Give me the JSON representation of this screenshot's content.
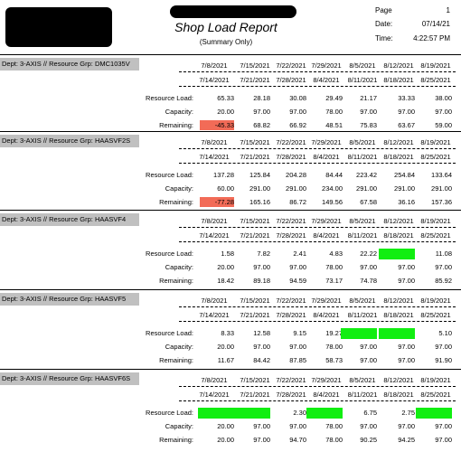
{
  "header": {
    "title": "Shop Load Report",
    "subtitle": "(Summary Only)",
    "page_label": "Page",
    "page_value": "1",
    "date_label": "Date:",
    "date_value": "07/14/21",
    "time_label": "Time:",
    "time_value": "4:22:57 PM"
  },
  "row_labels": {
    "load": "Resource Load:",
    "capacity": "Capacity:",
    "remaining": "Remaining:"
  },
  "sections": [
    {
      "dept": "Dept: 3-AXIS // Resource Grp: DMC1035V",
      "start_dates": [
        "7/8/2021",
        "7/15/2021",
        "7/22/2021",
        "7/29/2021",
        "8/5/2021",
        "8/12/2021",
        "8/19/2021"
      ],
      "end_dates": [
        "7/14/2021",
        "7/21/2021",
        "7/28/2021",
        "8/4/2021",
        "8/11/2021",
        "8/18/2021",
        "8/25/2021"
      ],
      "load": [
        "65.33",
        "28.18",
        "30.08",
        "29.49",
        "21.17",
        "33.33",
        "38.00"
      ],
      "capacity": [
        "20.00",
        "97.00",
        "97.00",
        "78.00",
        "97.00",
        "97.00",
        "97.00"
      ],
      "remaining": [
        "-45.33",
        "68.82",
        "66.92",
        "48.51",
        "75.83",
        "63.67",
        "59.00"
      ]
    },
    {
      "dept": "Dept: 3-AXIS // Resource Grp: HAASVF2S",
      "start_dates": [
        "7/8/2021",
        "7/15/2021",
        "7/22/2021",
        "7/29/2021",
        "8/5/2021",
        "8/12/2021",
        "8/19/2021"
      ],
      "end_dates": [
        "7/14/2021",
        "7/21/2021",
        "7/28/2021",
        "8/4/2021",
        "8/11/2021",
        "8/18/2021",
        "8/25/2021"
      ],
      "load": [
        "137.28",
        "125.84",
        "204.28",
        "84.44",
        "223.42",
        "254.84",
        "133.64"
      ],
      "capacity": [
        "60.00",
        "291.00",
        "291.00",
        "234.00",
        "291.00",
        "291.00",
        "291.00"
      ],
      "remaining": [
        "-77.28",
        "165.16",
        "86.72",
        "149.56",
        "67.58",
        "36.16",
        "157.36"
      ]
    },
    {
      "dept": "Dept: 3-AXIS // Resource Grp: HAASVF4",
      "start_dates": [
        "7/8/2021",
        "7/15/2021",
        "7/22/2021",
        "7/29/2021",
        "8/5/2021",
        "8/12/2021",
        "8/19/2021"
      ],
      "end_dates": [
        "7/14/2021",
        "7/21/2021",
        "7/28/2021",
        "8/4/2021",
        "8/11/2021",
        "8/18/2021",
        "8/25/2021"
      ],
      "load": [
        "1.58",
        "7.82",
        "2.41",
        "4.83",
        "22.22",
        "",
        "11.08"
      ],
      "capacity": [
        "20.00",
        "97.00",
        "97.00",
        "78.00",
        "97.00",
        "97.00",
        "97.00"
      ],
      "remaining": [
        "18.42",
        "89.18",
        "94.59",
        "73.17",
        "74.78",
        "97.00",
        "85.92"
      ]
    },
    {
      "dept": "Dept: 3-AXIS // Resource Grp: HAASVF5",
      "start_dates": [
        "7/8/2021",
        "7/15/2021",
        "7/22/2021",
        "7/29/2021",
        "8/5/2021",
        "8/12/2021",
        "8/19/2021"
      ],
      "end_dates": [
        "7/14/2021",
        "7/21/2021",
        "7/28/2021",
        "8/4/2021",
        "8/11/2021",
        "8/18/2021",
        "8/25/2021"
      ],
      "load": [
        "8.33",
        "12.58",
        "9.15",
        "19.27",
        "",
        "",
        "5.10"
      ],
      "capacity": [
        "20.00",
        "97.00",
        "97.00",
        "78.00",
        "97.00",
        "97.00",
        "97.00"
      ],
      "remaining": [
        "11.67",
        "84.42",
        "87.85",
        "58.73",
        "97.00",
        "97.00",
        "91.90"
      ]
    },
    {
      "dept": "Dept: 3-AXIS // Resource Grp: HAASVF6S",
      "start_dates": [
        "7/8/2021",
        "7/15/2021",
        "7/22/2021",
        "7/29/2021",
        "8/5/2021",
        "8/12/2021",
        "8/19/2021"
      ],
      "end_dates": [
        "7/14/2021",
        "7/21/2021",
        "7/28/2021",
        "8/4/2021",
        "8/11/2021",
        "8/18/2021",
        "8/25/2021"
      ],
      "load": [
        "",
        "",
        "2.30",
        "",
        "6.75",
        "2.75",
        ""
      ],
      "capacity": [
        "20.00",
        "97.00",
        "97.00",
        "78.00",
        "97.00",
        "97.00",
        "97.00"
      ],
      "remaining": [
        "20.00",
        "97.00",
        "94.70",
        "78.00",
        "90.25",
        "94.25",
        "97.00"
      ]
    }
  ],
  "colors": {
    "over_capacity": "#f26b57",
    "highlight": "#11ee11",
    "dept_band": "#c0c0c0"
  }
}
